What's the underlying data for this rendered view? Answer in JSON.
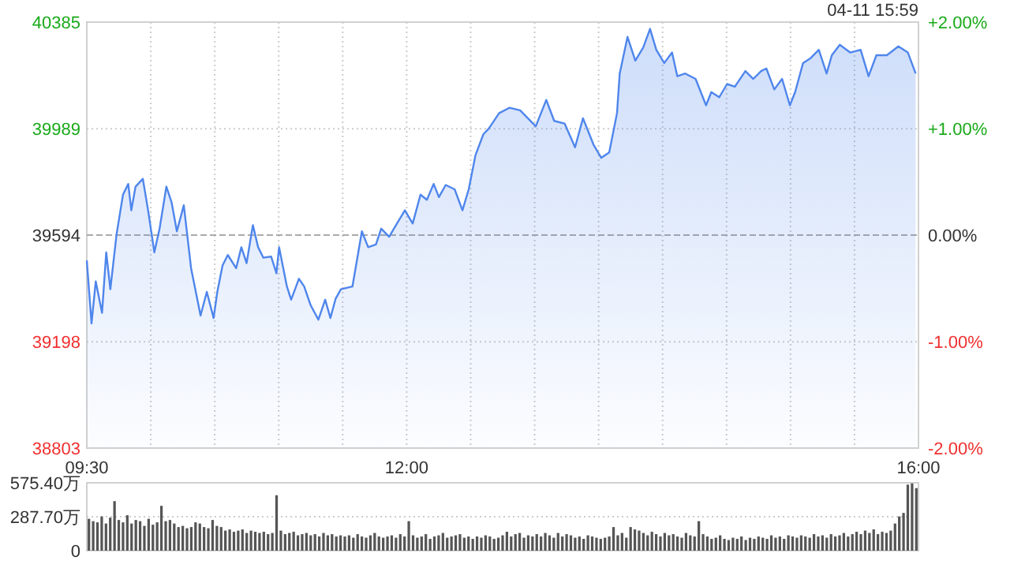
{
  "chart_data": [
    {
      "type": "area",
      "color": "#4f86ec",
      "x": [
        9.5,
        9.537,
        9.57,
        9.619,
        9.652,
        9.684,
        9.733,
        9.783,
        9.824,
        9.848,
        9.881,
        9.938,
        9.979,
        10.028,
        10.069,
        10.122,
        10.163,
        10.204,
        10.258,
        10.315,
        10.389,
        10.438,
        10.491,
        10.52,
        10.561,
        10.602,
        10.667,
        10.708,
        10.749,
        10.798,
        10.839,
        10.88,
        10.941,
        10.982,
        11.003,
        11.064,
        11.097,
        11.158,
        11.199,
        11.249,
        11.31,
        11.363,
        11.404,
        11.445,
        11.486,
        11.576,
        11.65,
        11.699,
        11.76,
        11.801,
        11.863,
        11.924,
        11.986,
        12.047,
        12.108,
        12.158,
        12.211,
        12.252,
        12.305,
        12.375,
        12.436,
        12.485,
        12.538,
        12.6,
        12.641,
        12.723,
        12.805,
        12.887,
        13.009,
        13.091,
        13.153,
        13.235,
        13.316,
        13.378,
        13.46,
        13.521,
        13.583,
        13.644,
        13.665,
        13.726,
        13.787,
        13.849,
        13.902,
        13.951,
        14.013,
        14.074,
        14.115,
        14.177,
        14.258,
        14.34,
        14.381,
        14.443,
        14.504,
        14.565,
        14.647,
        14.709,
        14.77,
        14.811,
        14.873,
        14.934,
        14.995,
        15.036,
        15.098,
        15.159,
        15.221,
        15.282,
        15.323,
        15.385,
        15.466,
        15.548,
        15.61,
        15.671,
        15.753,
        15.843,
        15.917,
        15.978
      ],
      "values": [
        39500,
        39266,
        39422,
        39305,
        39530,
        39393,
        39598,
        39744,
        39784,
        39686,
        39774,
        39803,
        39686,
        39530,
        39618,
        39774,
        39715,
        39608,
        39705,
        39471,
        39295,
        39383,
        39286,
        39383,
        39481,
        39520,
        39471,
        39549,
        39490,
        39631,
        39549,
        39510,
        39514,
        39452,
        39549,
        39403,
        39354,
        39432,
        39403,
        39334,
        39280,
        39354,
        39286,
        39358,
        39393,
        39403,
        39608,
        39549,
        39559,
        39618,
        39588,
        39637,
        39686,
        39637,
        39744,
        39725,
        39784,
        39735,
        39780,
        39764,
        39686,
        39764,
        39891,
        39969,
        39989,
        40047,
        40067,
        40057,
        39998,
        40096,
        40018,
        40008,
        39920,
        40028,
        39930,
        39881,
        39901,
        40047,
        40194,
        40330,
        40242,
        40291,
        40360,
        40282,
        40233,
        40272,
        40184,
        40194,
        40174,
        40076,
        40125,
        40106,
        40155,
        40145,
        40203,
        40174,
        40203,
        40213,
        40135,
        40174,
        40076,
        40125,
        40233,
        40252,
        40282,
        40194,
        40262,
        40301,
        40272,
        40282,
        40184,
        40262,
        40262,
        40295,
        40272,
        40194
      ],
      "xlim": [
        9.5,
        16
      ],
      "xticks": [
        {
          "value": 9.5,
          "label": "09:30"
        },
        {
          "value": 10,
          "label": null
        },
        {
          "value": 10.5,
          "label": null
        },
        {
          "value": 11,
          "label": null
        },
        {
          "value": 11.5,
          "label": null
        },
        {
          "value": 12,
          "label": "12:00"
        },
        {
          "value": 12.5,
          "label": null
        },
        {
          "value": 13,
          "label": null
        },
        {
          "value": 13.5,
          "label": null
        },
        {
          "value": 14,
          "label": null
        },
        {
          "value": 14.5,
          "label": null
        },
        {
          "value": 15,
          "label": null
        },
        {
          "value": 15.5,
          "label": null
        },
        {
          "value": 16,
          "label": "16:00"
        }
      ],
      "ylim": [
        38803,
        40385
      ],
      "yticks": [
        38803,
        39198,
        39594,
        39989,
        40385
      ],
      "y2lim": [
        -2,
        2
      ],
      "y2ticks": [
        {
          "value": -2,
          "label": "-2.00%"
        },
        {
          "value": -1,
          "label": "-1.00%"
        },
        {
          "value": 0,
          "label": "0.00%"
        },
        {
          "value": 1,
          "label": "+1.00%"
        },
        {
          "value": 2,
          "label": "+2.00%"
        }
      ],
      "grid": true,
      "ref_lines": [
        {
          "axis": "y",
          "value": 39594,
          "line_style": "dashed"
        }
      ],
      "annotations": [
        "04-11 15:59"
      ]
    },
    {
      "type": "bar",
      "color": "#555555",
      "tick_labels": "y",
      "grid": "y",
      "categories": [
        null,
        null,
        null,
        null,
        null,
        null,
        null,
        null,
        null,
        null,
        null,
        null,
        null,
        null,
        null,
        null,
        null,
        null,
        null,
        null,
        null,
        null,
        null,
        null,
        null,
        null,
        null,
        null,
        null,
        null,
        null,
        null,
        null,
        null,
        null,
        null,
        null,
        null,
        null,
        null,
        null,
        null,
        null,
        null,
        null,
        null,
        null,
        null,
        null,
        null,
        null,
        null,
        null,
        null,
        null,
        null,
        null,
        null,
        null,
        null,
        null,
        null,
        null,
        null,
        null,
        null,
        null,
        null,
        null,
        null,
        null,
        null,
        null,
        null,
        null,
        null,
        null,
        null,
        null,
        null,
        null,
        null,
        null,
        null,
        null,
        null,
        null,
        null,
        null,
        null,
        null,
        null,
        null,
        null,
        null,
        null,
        null,
        null,
        null,
        null,
        null,
        null,
        null,
        null,
        null,
        null,
        null,
        null,
        null,
        null,
        null,
        null,
        null,
        null,
        null,
        null,
        null,
        null,
        null,
        null,
        null,
        null,
        null,
        null,
        null,
        null,
        null,
        null,
        null,
        null,
        null,
        null,
        null,
        null,
        null,
        null,
        null,
        null,
        null,
        null,
        null,
        null,
        null,
        null,
        null,
        null,
        null,
        null,
        null,
        null,
        null,
        null,
        null,
        null,
        null,
        null,
        null,
        null,
        null,
        null,
        null,
        null,
        null,
        null,
        null,
        null,
        null,
        null,
        null,
        null,
        null,
        null,
        null,
        null,
        null,
        null,
        null,
        null,
        null,
        null,
        null,
        null,
        null,
        null,
        null,
        null,
        null,
        null,
        null,
        null,
        null,
        null,
        null,
        null,
        null
      ],
      "values": [
        270,
        250,
        240,
        290,
        230,
        280,
        420,
        260,
        240,
        300,
        230,
        260,
        250,
        210,
        270,
        220,
        240,
        380,
        250,
        260,
        230,
        200,
        210,
        190,
        200,
        240,
        230,
        200,
        190,
        260,
        210,
        200,
        170,
        180,
        160,
        170,
        180,
        150,
        170,
        160,
        150,
        160,
        140,
        150,
        470,
        170,
        140,
        150,
        160,
        130,
        140,
        150,
        130,
        140,
        120,
        150,
        130,
        140,
        120,
        130,
        120,
        130,
        110,
        140,
        120,
        110,
        130,
        150,
        120,
        110,
        120,
        130,
        110,
        140,
        120,
        250,
        130,
        110,
        120,
        140,
        100,
        120,
        130,
        150,
        110,
        120,
        130,
        140,
        110,
        120,
        100,
        120,
        110,
        130,
        120,
        100,
        110,
        130,
        160,
        120,
        140,
        150,
        110,
        130,
        120,
        140,
        120,
        150,
        130,
        110,
        150,
        120,
        140,
        130,
        110,
        120,
        100,
        130,
        120,
        110,
        100,
        110,
        120,
        200,
        130,
        150,
        110,
        200,
        180,
        170,
        150,
        130,
        160,
        140,
        120,
        150,
        130,
        140,
        120,
        110,
        150,
        130,
        120,
        250,
        140,
        120,
        100,
        110,
        130,
        100,
        90,
        110,
        100,
        120,
        90,
        110,
        100,
        120,
        110,
        100,
        130,
        110,
        120,
        100,
        130,
        120,
        110,
        130,
        120,
        110,
        140,
        120,
        130,
        110,
        140,
        120,
        130,
        150,
        120,
        140,
        160,
        140,
        170,
        150,
        180,
        140,
        160,
        150,
        170,
        230,
        290,
        320,
        560,
        570,
        530
      ],
      "ylim": [
        0,
        575.4
      ],
      "yticks": [
        0,
        {
          "value": 287.7,
          "label": "287.70万"
        },
        {
          "value": 575.4,
          "label": "575.40万"
        }
      ]
    }
  ]
}
